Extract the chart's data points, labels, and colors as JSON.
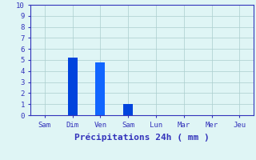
{
  "categories": [
    "Sam",
    "Dim",
    "Ven",
    "Sam",
    "Lun",
    "Mar",
    "Mer",
    "Jeu"
  ],
  "values": [
    0,
    5.2,
    4.8,
    1.0,
    0,
    0,
    0,
    0
  ],
  "bar_positions": [
    0,
    1,
    2,
    3,
    4,
    5,
    6,
    7
  ],
  "bar_colors": [
    "#0044dd",
    "#0044dd",
    "#1166ff",
    "#0044dd",
    "#0044dd",
    "#0044dd",
    "#0044dd",
    "#0044dd"
  ],
  "xlabel": "Précipitations 24h ( mm )",
  "ylim": [
    0,
    10
  ],
  "yticks": [
    0,
    1,
    2,
    3,
    4,
    5,
    6,
    7,
    8,
    9,
    10
  ],
  "background_color": "#dff5f5",
  "grid_color": "#aacece",
  "tick_color": "#3333bb",
  "label_color": "#3333bb",
  "xlabel_fontsize": 8,
  "tick_fontsize": 6.5,
  "bar_width": 0.35,
  "figsize": [
    3.2,
    2.0
  ],
  "dpi": 100
}
